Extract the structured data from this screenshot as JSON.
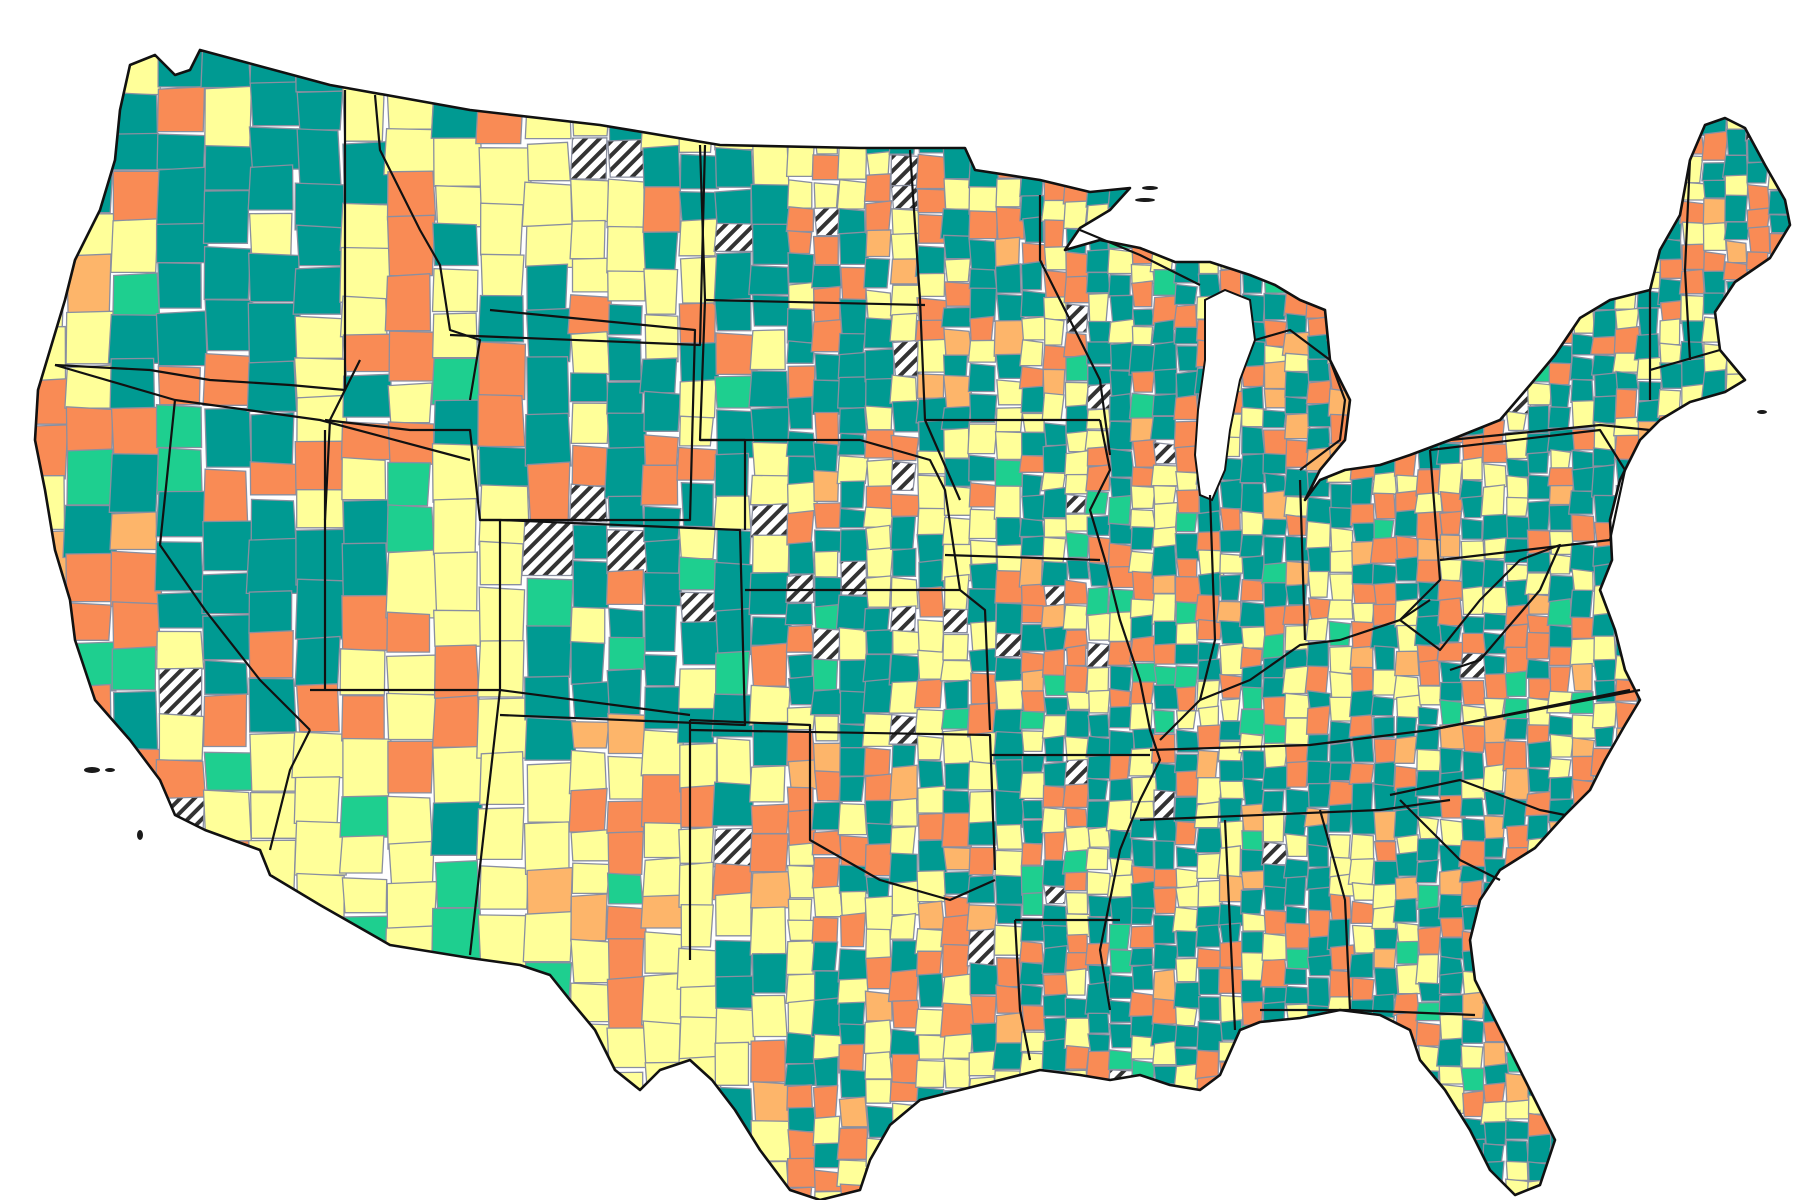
{
  "map": {
    "categories": [
      {
        "key": "teal",
        "color": "#009a92"
      },
      {
        "key": "green",
        "color": "#1ecf8f"
      },
      {
        "key": "yellow",
        "color": "#ffff99"
      },
      {
        "key": "light-orange",
        "color": "#fdb56a"
      },
      {
        "key": "orange",
        "color": "#f98b55"
      },
      {
        "key": "no-data",
        "pattern": "diagonal-hatch",
        "color": "#333333"
      }
    ],
    "border_color": "#8a8fa0",
    "state_border_color": "#111111"
  }
}
